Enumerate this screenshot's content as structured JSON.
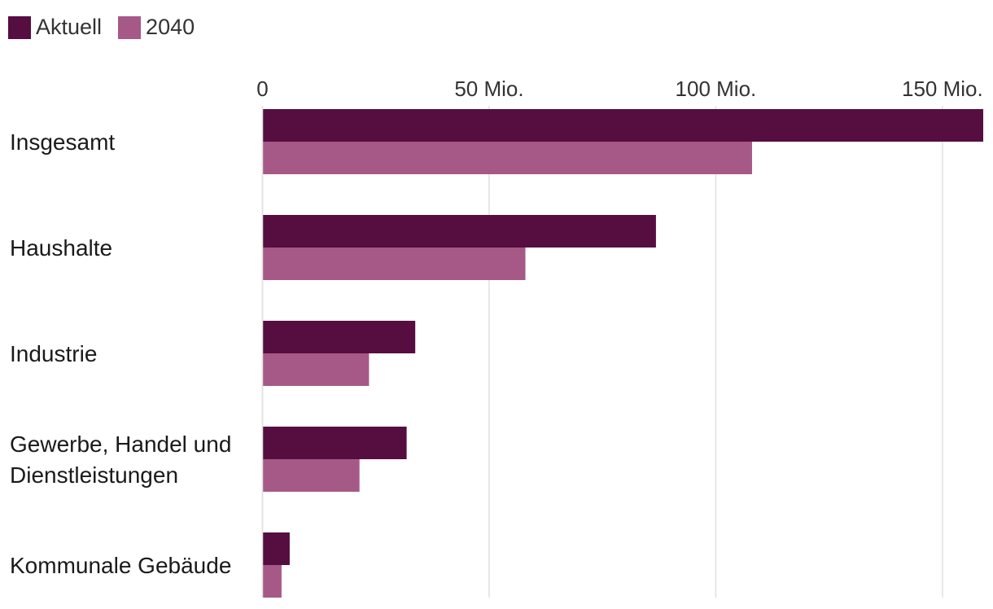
{
  "chart_data": {
    "type": "bar",
    "orientation": "horizontal",
    "title": "",
    "xlabel": "",
    "ylabel": "",
    "xlim": [
      0,
      159
    ],
    "x_ticks": [
      {
        "value": 0,
        "label": "0"
      },
      {
        "value": 50,
        "label": "50 Mio."
      },
      {
        "value": 100,
        "label": "100 Mio."
      },
      {
        "value": 150,
        "label": "150 Mio."
      }
    ],
    "categories": [
      [
        "Insgesamt"
      ],
      [
        "Haushalte"
      ],
      [
        "Industrie"
      ],
      [
        "Gewerbe, Handel und",
        "Dienstleistungen"
      ],
      [
        "Kommunale Gebäude"
      ]
    ],
    "series": [
      {
        "name": "Aktuell",
        "color": "#560d40",
        "values": [
          159,
          86.8,
          33.7,
          31.8,
          6.0
        ]
      },
      {
        "name": "2040",
        "color": "#a65986",
        "values": [
          108,
          58.0,
          23.5,
          21.4,
          4.2
        ]
      }
    ],
    "legend_position": "top-left",
    "grid": true
  }
}
